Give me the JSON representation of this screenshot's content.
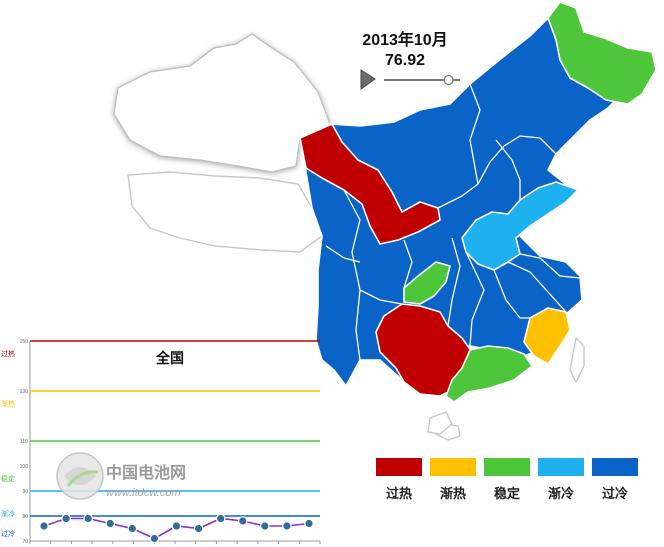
{
  "timeline": {
    "date_label": "2013年10月",
    "index_value": "76.92",
    "position": 0.85
  },
  "colors": {
    "overheat": "#c00000",
    "warming": "#ffc000",
    "stable": "#4ec63a",
    "cooling": "#1eb1f0",
    "overcold": "#0a64c8"
  },
  "legend": [
    {
      "key": "overheat",
      "label": "过热",
      "color": "#c00000"
    },
    {
      "key": "warming",
      "label": "渐热",
      "color": "#ffc000"
    },
    {
      "key": "stable",
      "label": "稳定",
      "color": "#4ec63a"
    },
    {
      "key": "cooling",
      "label": "渐冷",
      "color": "#1eb1f0"
    },
    {
      "key": "overcold",
      "label": "过冷",
      "color": "#0a64c8"
    }
  ],
  "watermark": {
    "brand": "中国电池网",
    "site": "www.itdcw.com"
  },
  "chart_data": {
    "type": "line",
    "title": "全国",
    "ylim": [
      70,
      150
    ],
    "yticks": [
      {
        "value": 150,
        "label": "150"
      },
      {
        "value": 130,
        "label": "130"
      },
      {
        "value": 110,
        "label": "110"
      },
      {
        "value": 100,
        "label": "100"
      },
      {
        "value": 90,
        "label": "90"
      },
      {
        "value": 80,
        "label": "80"
      },
      {
        "value": 70,
        "label": "70"
      }
    ],
    "band_labels": [
      {
        "value": 150,
        "label": "过热",
        "color": "#c00000"
      },
      {
        "value": 130,
        "label": "渐热",
        "color": "#ffc000"
      },
      {
        "value": 100,
        "label": "稳定",
        "color": "#4ec63a"
      },
      {
        "value": 86,
        "label": "渐冷",
        "color": "#1eb1f0"
      },
      {
        "value": 78,
        "label": "过冷",
        "color": "#0a64c8"
      }
    ],
    "reference_lines": [
      {
        "value": 150,
        "color": "#c00000"
      },
      {
        "value": 130,
        "color": "#ffc000"
      },
      {
        "value": 110,
        "color": "#4ec63a"
      },
      {
        "value": 90,
        "color": "#1eb1f0"
      },
      {
        "value": 80,
        "color": "#0a64c8"
      }
    ],
    "series": [
      {
        "values": [
          76,
          79,
          79,
          77,
          75,
          71,
          76,
          75,
          79,
          78,
          76,
          76,
          77
        ]
      }
    ]
  }
}
